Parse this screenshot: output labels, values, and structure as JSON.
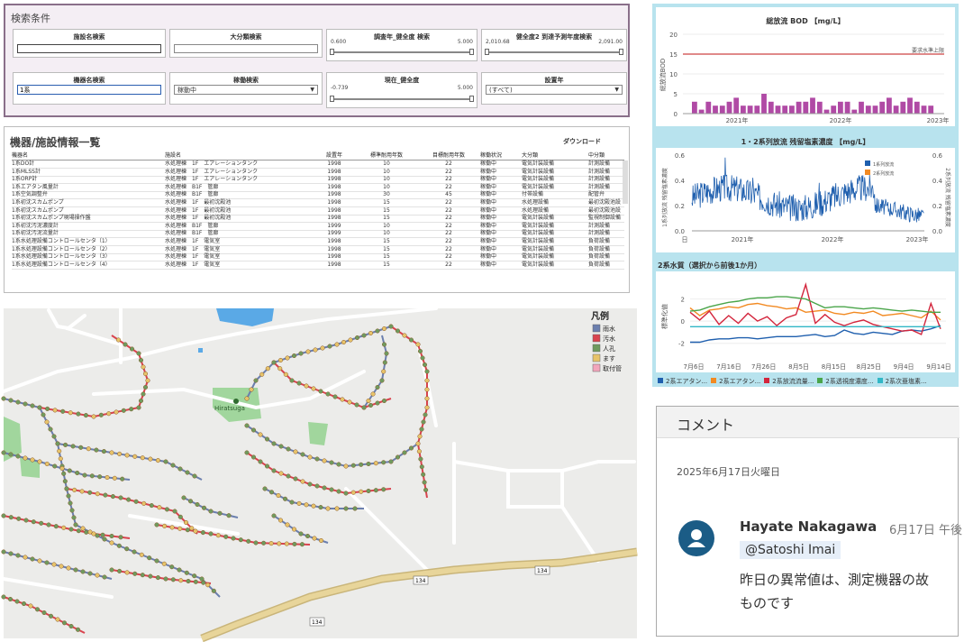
{
  "search": {
    "title": "検索条件",
    "facility_name": {
      "label": "施設名検索",
      "value": ""
    },
    "category": {
      "label": "大分類検索",
      "value": ""
    },
    "survey_health": {
      "label": "調査年_健全度 検索",
      "min": "0.600",
      "max": "5.000",
      "lo_frac": 0.0,
      "hi_frac": 1.0
    },
    "health_year": {
      "label": "健全度2 到達予測年度検索",
      "min": "2,010.68",
      "max": "2,091.00",
      "lo_frac": 0.0,
      "hi_frac": 1.0
    },
    "equipment_name": {
      "label": "機器名検索",
      "value": "1系"
    },
    "operation": {
      "label": "稼働検索",
      "value": "稼動中"
    },
    "current_health": {
      "label": "現在_健全度",
      "min": "-0.739",
      "max": "5.000",
      "lo_frac": 0.0,
      "hi_frac": 1.0
    },
    "install_year": {
      "label": "設置年",
      "value": "(すべて)"
    }
  },
  "table": {
    "title": "機器/施設情報一覧",
    "download": "ダウンロード",
    "headers": [
      "機器名",
      "施設名",
      "設置年",
      "標準耐用年数",
      "目標耐用年数",
      "稼働状況",
      "大分類",
      "中分類"
    ],
    "rows": [
      [
        "1系DO計",
        "水処理棟　1F　エアレーションタンク",
        "1998",
        "10",
        "22",
        "稼働中",
        "電気計装設備",
        "計測設備"
      ],
      [
        "1系MLSS計",
        "水処理棟　1F　エアレーションタンク",
        "1998",
        "10",
        "22",
        "稼働中",
        "電気計装設備",
        "計測設備"
      ],
      [
        "1系ORP計",
        "水処理棟　1F　エアレーションタンク",
        "1998",
        "10",
        "22",
        "稼働中",
        "電気計装設備",
        "計測設備"
      ],
      [
        "1系エアタン風量計",
        "水処理棟　B1F　管廊",
        "1998",
        "10",
        "22",
        "稼働中",
        "電気計装設備",
        "計測設備"
      ],
      [
        "1系空気調整弁",
        "水処理棟　B1F　管廊",
        "1998",
        "30",
        "45",
        "稼働中",
        "付帯設備",
        "配管弁"
      ],
      [
        "1系初沈スカムポンプ",
        "水処理棟　1F　最初沈殿池",
        "1998",
        "15",
        "22",
        "稼働中",
        "水処理設備",
        "最初沈殿池設"
      ],
      [
        "1系初沈スカムポンプ",
        "水処理棟　1F　最初沈殿池",
        "1998",
        "15",
        "22",
        "稼働中",
        "水処理設備",
        "最初沈殿池設"
      ],
      [
        "1系初沈スカムポンプ現場操作盤",
        "水処理棟　1F　最初沈殿池",
        "1998",
        "15",
        "22",
        "稼働中",
        "電気計装設備",
        "監視制御設備"
      ],
      [
        "1系初沈汚泥濃度計",
        "水処理棟　B1F　管廊",
        "1999",
        "10",
        "22",
        "稼働中",
        "電気計装設備",
        "計測設備"
      ],
      [
        "1系初沈汚泥流量計",
        "水処理棟　B1F　管廊",
        "1999",
        "10",
        "22",
        "稼働中",
        "電気計装設備",
        "計測設備"
      ],
      [
        "1系水処理設備コントロールセンタ（1）",
        "水処理棟　1F　電気室",
        "1998",
        "15",
        "22",
        "稼働中",
        "電気計装設備",
        "負荷設備"
      ],
      [
        "1系水処理設備コントロールセンタ（2）",
        "水処理棟　1F　電気室",
        "1998",
        "15",
        "22",
        "稼働中",
        "電気計装設備",
        "負荷設備"
      ],
      [
        "1系水処理設備コントロールセンタ（3）",
        "水処理棟　1F　電気室",
        "1998",
        "15",
        "22",
        "稼働中",
        "電気計装設備",
        "負荷設備"
      ],
      [
        "1系水処理設備コントロールセンタ（4）",
        "水処理棟　1F　電気室",
        "1998",
        "15",
        "22",
        "稼働中",
        "電気計装設備",
        "負荷設備"
      ]
    ]
  },
  "map": {
    "legend_title": "凡例",
    "legend": [
      {
        "label": "雨水",
        "color": "#6b7fae"
      },
      {
        "label": "汚水",
        "color": "#d9434e"
      },
      {
        "label": "人孔",
        "color": "#6f9a5e"
      },
      {
        "label": "ます",
        "color": "#e7c36a"
      },
      {
        "label": "取付管",
        "color": "#f2a5bb"
      }
    ],
    "place_label": "Hiratsuga",
    "road_labels": [
      "134",
      "134",
      "134"
    ]
  },
  "chart_data": [
    {
      "type": "bar",
      "title": "総放流 BOD 【mg/L】",
      "ylabel": "総放流BOD",
      "ylim": [
        0,
        20
      ],
      "yticks": [
        "20",
        "15",
        "10",
        "5",
        "0"
      ],
      "x_ticks": [
        "2021年",
        "2022年",
        "2023年"
      ],
      "reference": {
        "label": "要求水準上限",
        "value": 15
      },
      "bar_color": "#b04aa5",
      "values": [
        3,
        2,
        1,
        2,
        3,
        4,
        2,
        3,
        2,
        1,
        3,
        2,
        4,
        3,
        2,
        1,
        2,
        3,
        2,
        3,
        5,
        2,
        3,
        4,
        2,
        3,
        2,
        1,
        2,
        4,
        3,
        2,
        3,
        2,
        4,
        5,
        3,
        2,
        1,
        3,
        2,
        4,
        3,
        2,
        3,
        2,
        1,
        2,
        3,
        4,
        2,
        3,
        2,
        5,
        3,
        2,
        4,
        3,
        2,
        1,
        3,
        2,
        4,
        2,
        3,
        6,
        2,
        3,
        2,
        4
      ]
    },
    {
      "type": "line",
      "title": "1・2系列放流 残留塩素濃度 【mg/L】",
      "ylabel_left": "1系列放流 残留塩素濃度",
      "ylabel_right": "2系列放流 残留塩素濃度",
      "ylim": [
        0,
        0.6
      ],
      "yticks": [
        "0.6",
        "0.4",
        "0.2",
        "0.0"
      ],
      "y2ticks": [
        "0.6",
        "0.4",
        "0.2",
        "0.0"
      ],
      "x_ticks": [
        "日",
        "2021年",
        "2022年",
        "2023年"
      ],
      "series": [
        {
          "name": "1系列放流",
          "color": "#1f5fae"
        },
        {
          "name": "2系列放流",
          "color": "#f28a22"
        }
      ]
    },
    {
      "type": "line",
      "title": "2系水質（選択から前後1か月）",
      "ylabel": "標準化値",
      "ylim": [
        -3,
        4
      ],
      "yticks": [
        "2",
        "0",
        "-2"
      ],
      "x_ticks": [
        "7月6日",
        "7月16日",
        "7月26日",
        "8月5日",
        "8月15日",
        "8月25日",
        "9月4日",
        "9月14日"
      ],
      "series": [
        {
          "name": "2系エアタン...",
          "color": "#1f5fae",
          "values": [
            -1.9,
            -1.9,
            -1.7,
            -1.6,
            -1.6,
            -1.5,
            -1.5,
            -1.6,
            -1.5,
            -1.4,
            -1.4,
            -1.4,
            -1.3,
            -1.2,
            -1.4,
            -1.3,
            -0.8,
            -1.1,
            -1.2,
            -1.0,
            -1.1,
            -1.2,
            -0.9,
            -0.8,
            -0.9,
            -0.7,
            -0.4
          ]
        },
        {
          "name": "2系エアタン...",
          "color": "#f28a22",
          "values": [
            1.2,
            0.5,
            1.0,
            1.1,
            1.3,
            1.2,
            1.5,
            1.6,
            1.4,
            1.3,
            1.1,
            1.2,
            0.8,
            0.9,
            1.0,
            0.7,
            0.6,
            0.8,
            0.7,
            0.9,
            0.5,
            0.6,
            0.7,
            0.5,
            0.3,
            0.9,
            0.1
          ]
        },
        {
          "name": "2系放流流量...",
          "color": "#d3253c",
          "values": [
            0.8,
            0.1,
            0.9,
            -0.3,
            0.5,
            -0.2,
            0.7,
            0.0,
            0.4,
            -0.4,
            0.3,
            0.6,
            3.3,
            -0.2,
            0.6,
            -0.1,
            -0.4,
            -0.1,
            0.1,
            -0.3,
            -0.5,
            -0.7,
            -0.9,
            -0.8,
            -1.2,
            1.6,
            -0.7
          ]
        },
        {
          "name": "2系透視度濃度...",
          "color": "#4aa54a",
          "values": [
            0.9,
            1.0,
            1.3,
            1.5,
            1.7,
            1.8,
            2.0,
            2.1,
            2.1,
            2.2,
            2.2,
            2.1,
            2.0,
            1.6,
            1.2,
            1.3,
            1.3,
            1.2,
            1.1,
            1.2,
            1.1,
            1.0,
            0.9,
            1.0,
            0.9,
            0.8,
            0.8
          ]
        },
        {
          "name": "2系次亜塩素...",
          "color": "#31b7c6",
          "values": [
            -0.5,
            -0.5,
            -0.5,
            -0.5,
            -0.5,
            -0.5,
            -0.5,
            -0.5,
            -0.5,
            -0.5,
            -0.5,
            -0.5,
            -0.5,
            -0.5,
            -0.5,
            -0.5,
            -0.5,
            -0.5,
            -0.5,
            -0.5,
            -0.5,
            -0.5,
            -0.5,
            -0.5,
            -0.5,
            -0.5,
            -0.5
          ]
        }
      ]
    }
  ],
  "comment": {
    "title": "コメント",
    "date": "2025年6月17日火曜日",
    "author": "Hayate Nakagawa",
    "time": "6月17日 午後",
    "mention": "@Satoshi Imai",
    "text_line1": "昨日の異常値は、測定機器の故",
    "text_line2": "ものです"
  }
}
